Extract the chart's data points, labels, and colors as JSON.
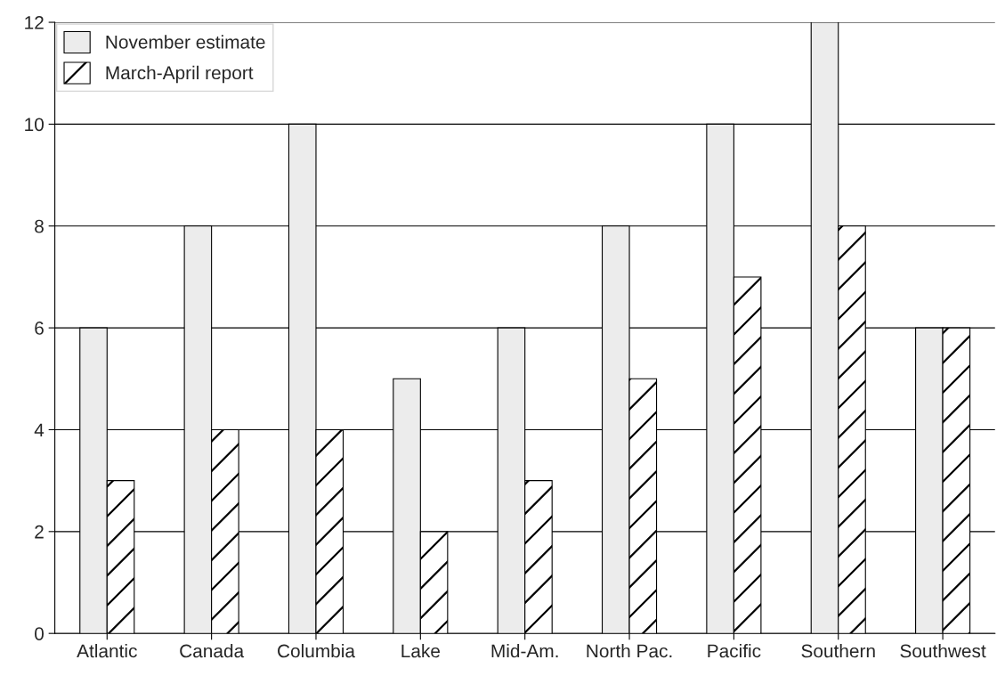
{
  "chart_data": {
    "type": "bar",
    "categories": [
      "Atlantic",
      "Canada",
      "Columbia",
      "Lake",
      "Mid-Am.",
      "North Pac.",
      "Pacific",
      "Southern",
      "Southwest"
    ],
    "series": [
      {
        "name": "November estimate",
        "color": "#ececec",
        "values": [
          6,
          8,
          10,
          5,
          6,
          8,
          10,
          12,
          6
        ]
      },
      {
        "name": "March-April report",
        "color": "#ffffff",
        "values": [
          3,
          4,
          4,
          2,
          3,
          5,
          7,
          8,
          6
        ]
      }
    ],
    "ylim": [
      0,
      12
    ],
    "yticks": [
      0,
      2,
      4,
      6,
      8,
      10,
      12
    ],
    "grid": "y",
    "legend": "top left"
  }
}
